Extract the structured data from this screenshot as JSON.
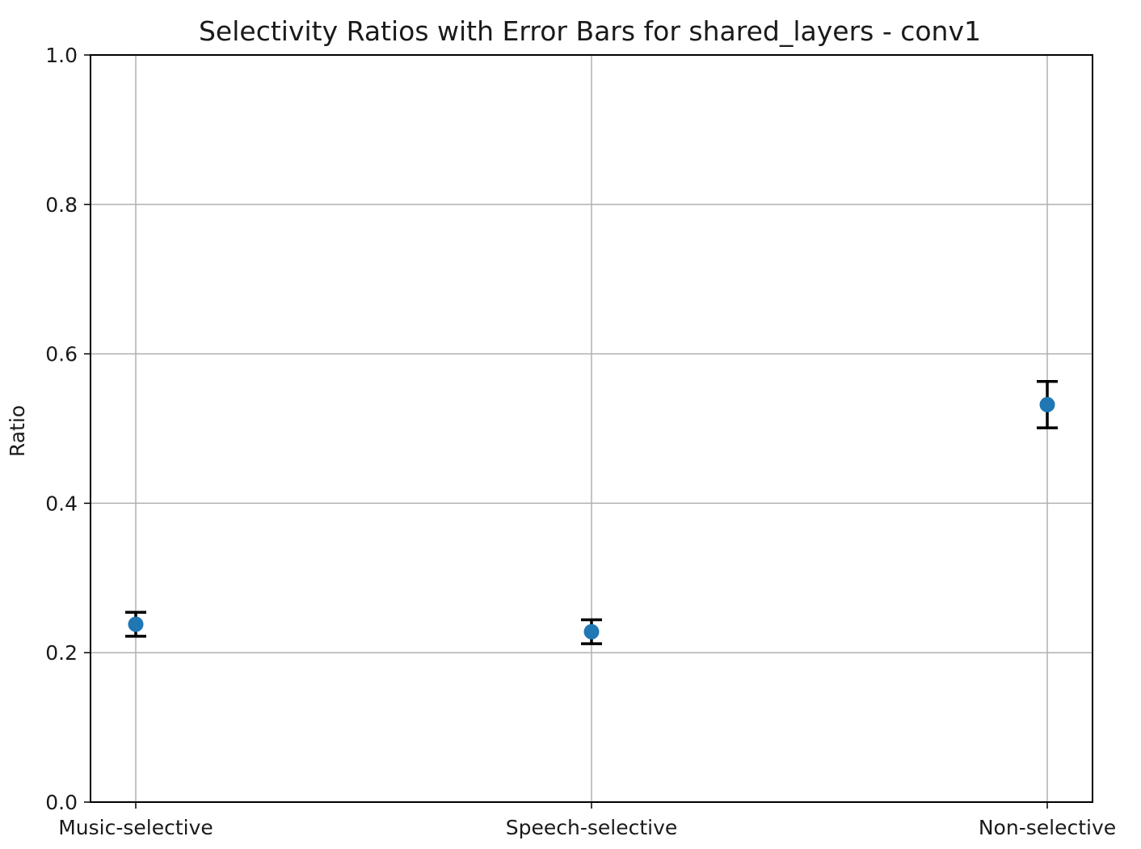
{
  "chart_data": {
    "type": "scatter",
    "title": "Selectivity Ratios with Error Bars for shared_layers - conv1",
    "xlabel": "",
    "ylabel": "Ratio",
    "categories": [
      "Music-selective",
      "Speech-selective",
      "Non-selective"
    ],
    "series": [
      {
        "values": [
          0.238,
          0.228,
          0.532
        ],
        "errors": [
          0.016,
          0.016,
          0.031
        ]
      }
    ],
    "ylim": [
      0.0,
      1.0
    ],
    "yticks": [
      0.0,
      0.2,
      0.4,
      0.6,
      0.8,
      1.0
    ],
    "ytick_labels": [
      "0.0",
      "0.2",
      "0.4",
      "0.6",
      "0.8",
      "1.0"
    ],
    "grid": true,
    "colors": {
      "marker": "#1f77b4",
      "errorbar": "#000000",
      "grid": "#b0b0b0",
      "axes": "#000000"
    }
  }
}
